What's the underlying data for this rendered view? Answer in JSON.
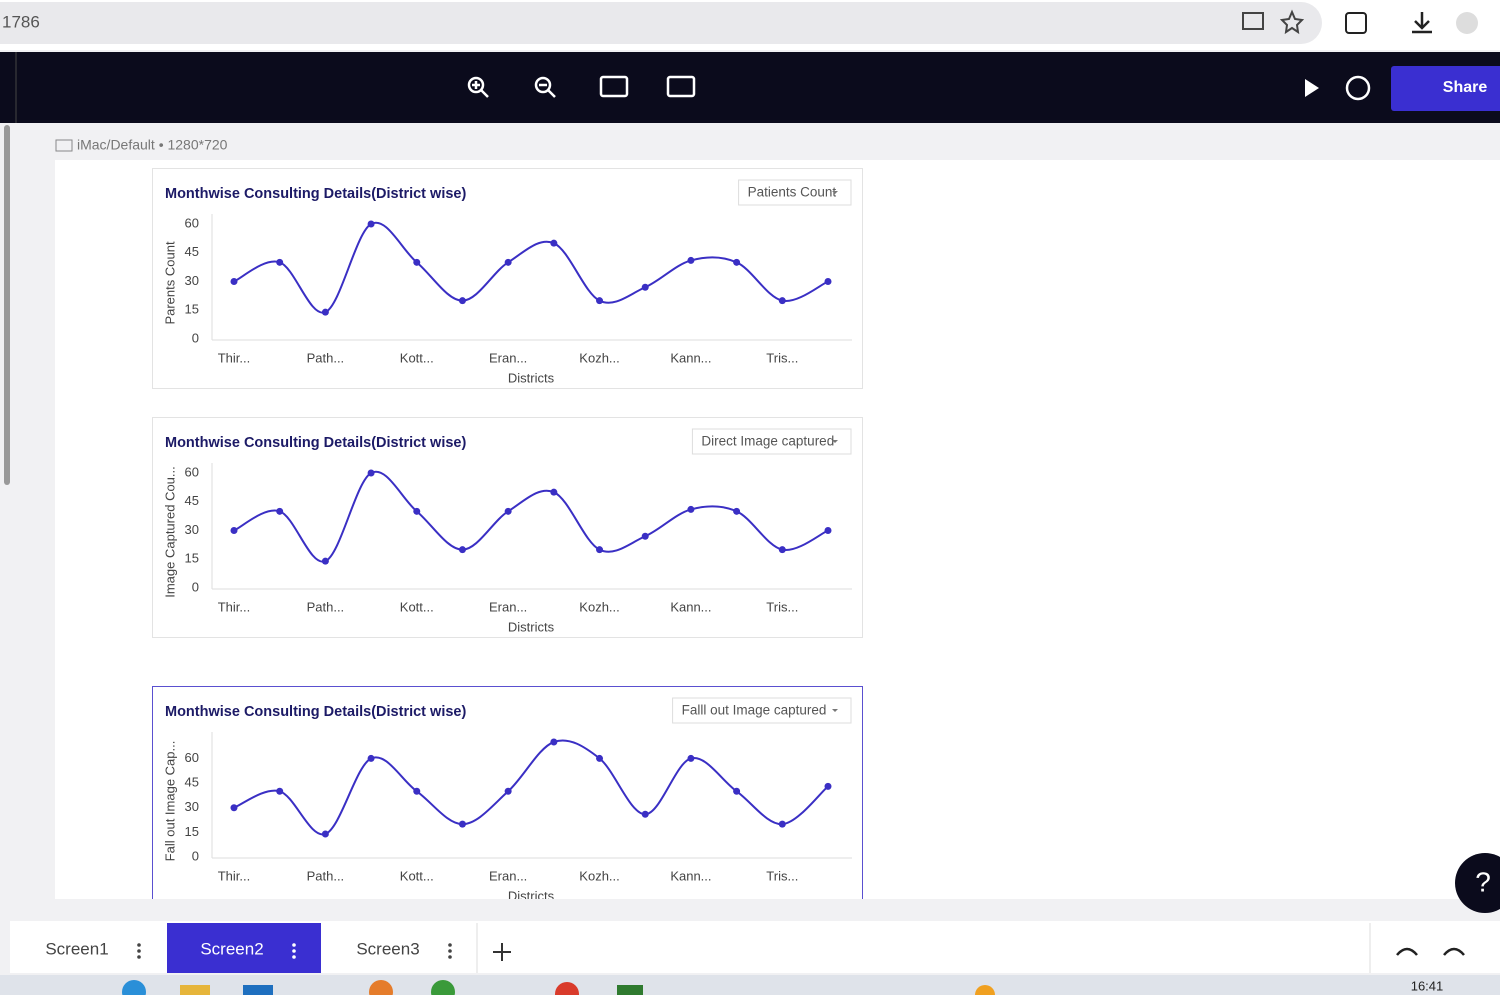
{
  "browser": {
    "address": "1786"
  },
  "device_label": "iMac/Default • 1280*720",
  "toolbar": {
    "share": "Share"
  },
  "charts": [
    {
      "type": "line",
      "title": "Monthwise Consulting Details(District wise)",
      "dropdown": "Patients Count",
      "y_label": "Parents Count",
      "x_label": "Districts",
      "categories": [
        "Thir...",
        null,
        "Path...",
        null,
        "Kott...",
        null,
        "Eran...",
        null,
        "Kozh...",
        null,
        "Kann...",
        null,
        "Tris...",
        null
      ],
      "values": [
        30,
        40,
        14,
        60,
        40,
        20,
        40,
        50,
        20,
        27,
        41,
        40,
        20,
        30
      ],
      "color": "#3a2fc4",
      "ylim": [
        0,
        60
      ],
      "yticks": [
        0,
        15,
        30,
        45,
        60
      ]
    },
    {
      "type": "line",
      "title": "Monthwise Consulting Details(District wise)",
      "dropdown": "Direct Image captured",
      "y_label": "Image Captured Cou...",
      "x_label": "Districts",
      "categories": [
        "Thir...",
        null,
        "Path...",
        null,
        "Kott...",
        null,
        "Eran...",
        null,
        "Kozh...",
        null,
        "Kann...",
        null,
        "Tris...",
        null
      ],
      "values": [
        30,
        40,
        14,
        60,
        40,
        20,
        40,
        50,
        20,
        27,
        41,
        40,
        20,
        30
      ],
      "color": "#3a2fc4",
      "ylim": [
        0,
        60
      ],
      "yticks": [
        0,
        15,
        30,
        45,
        60
      ]
    },
    {
      "type": "line",
      "title": "Monthwise Consulting Details(District wise)",
      "dropdown": "Falll out Image captured",
      "y_label": "Fall out Image Cap...",
      "x_label": "Districts",
      "categories": [
        "Thir...",
        null,
        "Path...",
        null,
        "Kott...",
        null,
        "Eran...",
        null,
        "Kozh...",
        null,
        "Kann...",
        null,
        "Tris...",
        null
      ],
      "values": [
        30,
        40,
        14,
        60,
        40,
        20,
        40,
        70,
        60,
        26,
        60,
        40,
        20,
        43
      ],
      "color": "#3a2fc4",
      "ylim": [
        0,
        70
      ],
      "yticks": [
        0,
        15,
        30,
        45,
        60
      ]
    }
  ],
  "tabs": [
    "Screen1",
    "Screen2",
    "Screen3"
  ],
  "help": "?",
  "clock": "16:41"
}
